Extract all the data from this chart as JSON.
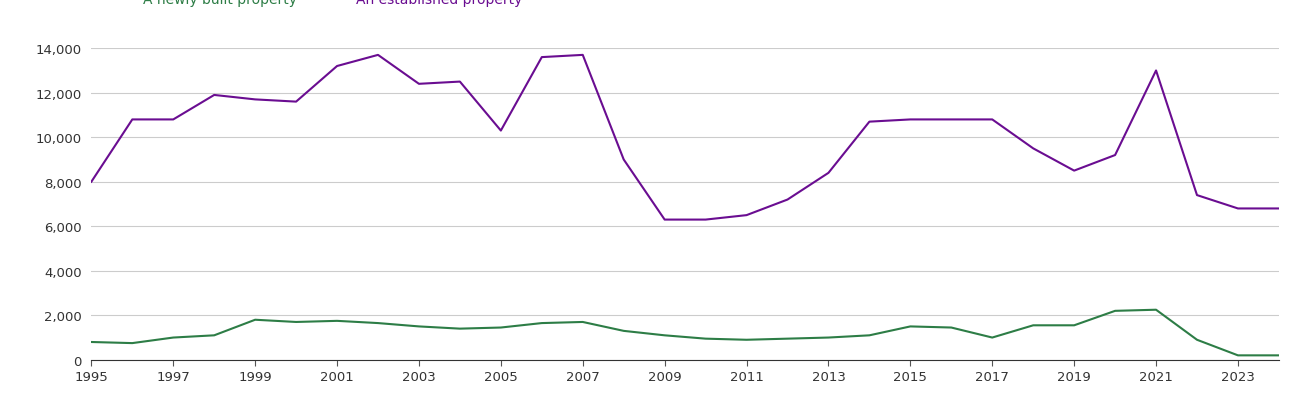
{
  "years": [
    1995,
    1996,
    1997,
    1998,
    1999,
    2000,
    2001,
    2002,
    2003,
    2004,
    2005,
    2006,
    2007,
    2008,
    2009,
    2010,
    2011,
    2012,
    2013,
    2014,
    2015,
    2016,
    2017,
    2018,
    2019,
    2020,
    2021,
    2022,
    2023,
    2024
  ],
  "new_build": [
    800,
    750,
    1000,
    1100,
    1800,
    1700,
    1750,
    1650,
    1500,
    1400,
    1450,
    1650,
    1700,
    1300,
    1100,
    950,
    900,
    950,
    1000,
    1100,
    1500,
    1450,
    1000,
    1550,
    1550,
    2200,
    2250,
    900,
    200,
    200
  ],
  "established": [
    8000,
    10800,
    10800,
    11900,
    11700,
    11600,
    13200,
    13700,
    12400,
    12500,
    10300,
    13600,
    13700,
    9000,
    6300,
    6300,
    6500,
    7200,
    8400,
    10700,
    10800,
    10800,
    10800,
    9500,
    8500,
    9200,
    13000,
    7400,
    6800,
    6800
  ],
  "new_color": "#2d7d46",
  "established_color": "#6a0d91",
  "ylim": [
    0,
    14000
  ],
  "yticks": [
    0,
    2000,
    4000,
    6000,
    8000,
    10000,
    12000,
    14000
  ],
  "background_color": "#ffffff",
  "grid_color": "#cccccc",
  "line_width": 1.5,
  "legend_fontsize": 10,
  "tick_fontsize": 9.5
}
